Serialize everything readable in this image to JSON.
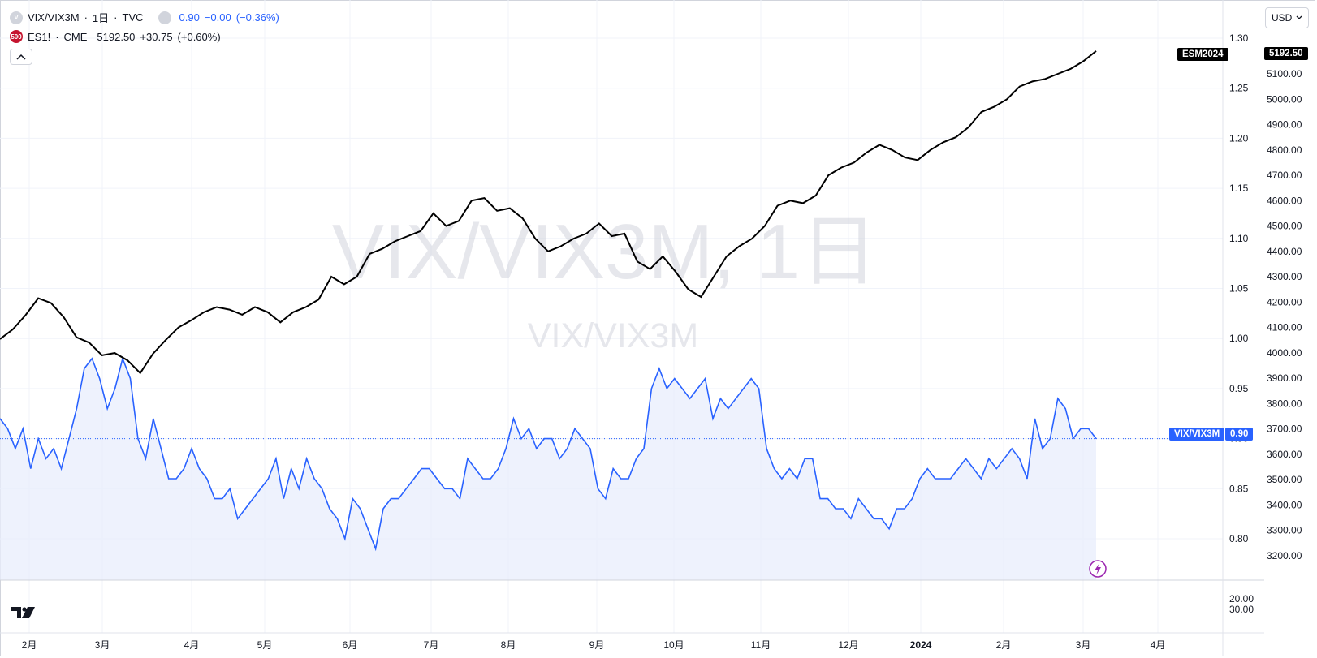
{
  "main_legend": {
    "symbol": "VIX/VIX3M",
    "separator1": "·",
    "interval": "1日",
    "separator2": "·",
    "exchange": "TVC",
    "last": "0.90",
    "change": "−0.00",
    "change_pct": "(−0.36%)"
  },
  "compare_legend": {
    "badge": "500",
    "symbol": "ES1!",
    "separator": "·",
    "exchange": "CME",
    "last": "5192.50",
    "change": "+30.75",
    "change_pct": "(+0.60%)"
  },
  "watermark": {
    "title": "VIX/VIX3M, 1日",
    "subtitle": "VIX/VIX3M"
  },
  "price_tags": {
    "es_name": "ESM2024",
    "es_value": "5192.50",
    "vix_name": "VIX/VIX3M",
    "vix_value": "0.90"
  },
  "currency": "USD",
  "icons": {
    "collapse": "chevron-up-icon",
    "currency_dropdown": "chevron-down-icon",
    "lightning": "lightning-icon",
    "logo": "tradingview-logo"
  },
  "colors": {
    "ratio_line": "#2962ff",
    "es_line": "#000000",
    "ratio_fill": "#e8eefc",
    "badge_red": "#c5152f",
    "grid": "#f0f3fa"
  },
  "chart_data": {
    "type": "line",
    "title": "VIX/VIX3M, 1日",
    "x_ticks": [
      "2月",
      "3月",
      "4月",
      "5月",
      "6月",
      "7月",
      "8月",
      "9月",
      "10月",
      "11月",
      "12月",
      "2024",
      "2月",
      "3月",
      "4月"
    ],
    "x_range": [
      "2023-01-18",
      "2024-04-25"
    ],
    "series": [
      {
        "name": "VIX/VIX3M",
        "axis": "left-scale",
        "values": [
          0.92,
          0.91,
          0.89,
          0.91,
          0.87,
          0.9,
          0.88,
          0.89,
          0.87,
          0.9,
          0.93,
          0.97,
          0.98,
          0.96,
          0.93,
          0.95,
          0.98,
          0.96,
          0.9,
          0.88,
          0.92,
          0.89,
          0.86,
          0.86,
          0.87,
          0.89,
          0.87,
          0.86,
          0.84,
          0.84,
          0.85,
          0.82,
          0.83,
          0.84,
          0.85,
          0.86,
          0.88,
          0.84,
          0.87,
          0.85,
          0.88,
          0.86,
          0.85,
          0.83,
          0.82,
          0.8,
          0.84,
          0.83,
          0.81,
          0.79,
          0.83,
          0.84,
          0.84,
          0.85,
          0.86,
          0.87,
          0.87,
          0.86,
          0.85,
          0.85,
          0.84,
          0.88,
          0.87,
          0.86,
          0.86,
          0.87,
          0.89,
          0.92,
          0.9,
          0.91,
          0.89,
          0.9,
          0.9,
          0.88,
          0.89,
          0.91,
          0.9,
          0.89,
          0.85,
          0.84,
          0.87,
          0.86,
          0.86,
          0.88,
          0.89,
          0.95,
          0.97,
          0.95,
          0.96,
          0.95,
          0.94,
          0.95,
          0.96,
          0.92,
          0.94,
          0.93,
          0.94,
          0.95,
          0.96,
          0.95,
          0.89,
          0.87,
          0.86,
          0.87,
          0.86,
          0.88,
          0.88,
          0.84,
          0.84,
          0.83,
          0.83,
          0.82,
          0.84,
          0.83,
          0.82,
          0.82,
          0.81,
          0.83,
          0.83,
          0.84,
          0.86,
          0.87,
          0.86,
          0.86,
          0.86,
          0.87,
          0.88,
          0.87,
          0.86,
          0.88,
          0.87,
          0.88,
          0.89,
          0.88,
          0.86,
          0.92,
          0.89,
          0.9,
          0.94,
          0.93,
          0.9,
          0.91,
          0.91,
          0.9
        ]
      },
      {
        "name": "ES1!",
        "axis": "right",
        "values": [
          4054,
          4092,
          4148,
          4215,
          4196,
          4140,
          4061,
          4040,
          3990,
          3999,
          3970,
          3920,
          3996,
          4050,
          4100,
          4128,
          4160,
          4180,
          4170,
          4150,
          4180,
          4160,
          4120,
          4160,
          4180,
          4210,
          4300,
          4270,
          4300,
          4390,
          4410,
          4440,
          4460,
          4480,
          4550,
          4500,
          4520,
          4600,
          4610,
          4560,
          4570,
          4530,
          4450,
          4400,
          4420,
          4450,
          4470,
          4510,
          4460,
          4470,
          4360,
          4330,
          4380,
          4320,
          4250,
          4220,
          4300,
          4380,
          4420,
          4450,
          4500,
          4580,
          4600,
          4590,
          4620,
          4700,
          4730,
          4750,
          4790,
          4820,
          4800,
          4770,
          4760,
          4800,
          4830,
          4850,
          4890,
          4950,
          4970,
          5000,
          5050,
          5070,
          5080,
          5100,
          5120,
          5150,
          5190
        ]
      }
    ],
    "axes": {
      "left_scale": {
        "ticks": [
          "1.30",
          "1.25",
          "1.20",
          "1.15",
          "1.10",
          "1.05",
          "1.00",
          "0.95",
          "0.90",
          "0.85",
          "0.80"
        ],
        "range": [
          0.76,
          1.31
        ]
      },
      "right": {
        "ticks": [
          "5100.00",
          "5000.00",
          "4900.00",
          "4800.00",
          "4700.00",
          "4600.00",
          "4500.00",
          "4400.00",
          "4300.00",
          "4200.00",
          "4100.00",
          "4000.00",
          "3900.00",
          "3800.00",
          "3700.00",
          "3600.00",
          "3500.00",
          "3400.00",
          "3300.00",
          "3200.00"
        ],
        "range": [
          3150,
          5320
        ]
      },
      "volume_pane": {
        "ticks": [
          "20.00",
          "30.00"
        ]
      }
    },
    "grid": true,
    "legend_placement": "top-left"
  }
}
